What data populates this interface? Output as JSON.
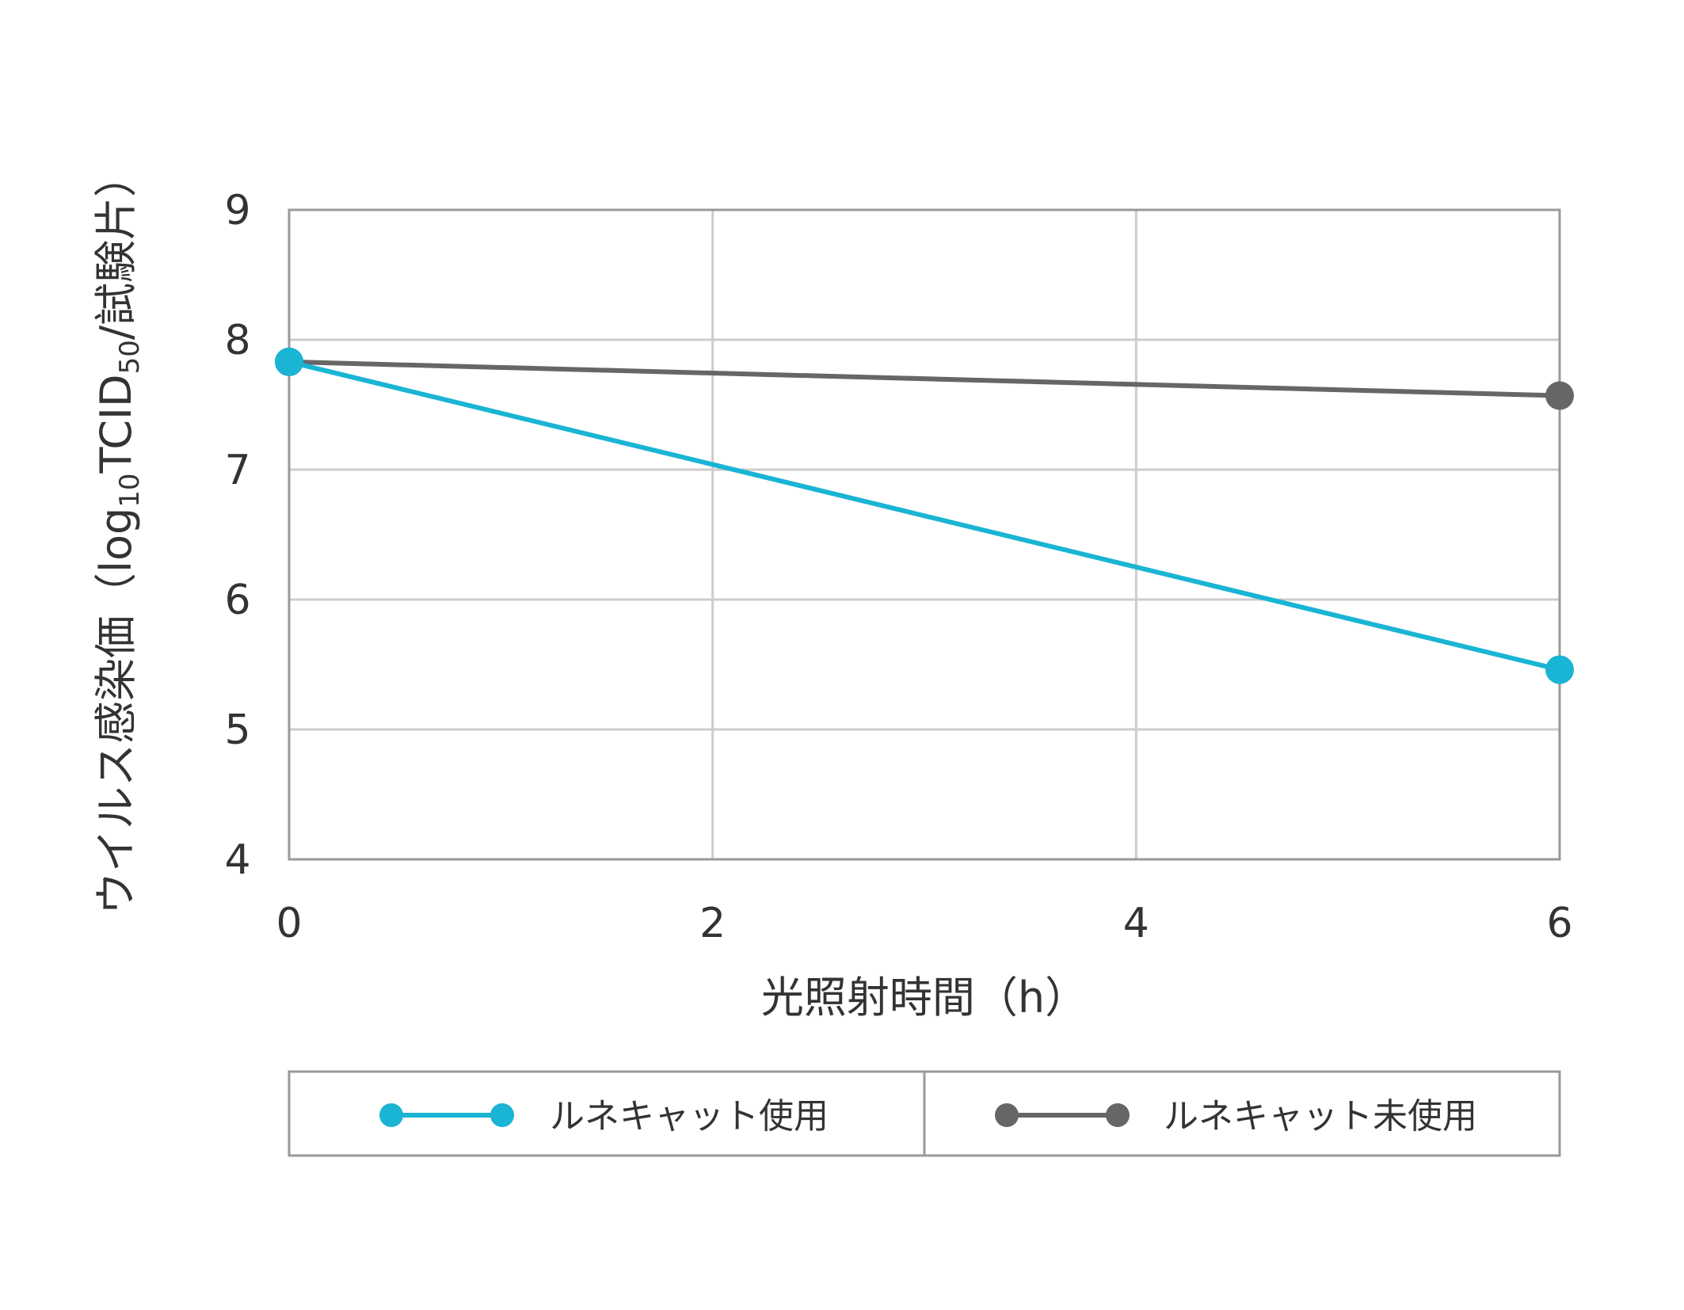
{
  "chart_data": {
    "type": "line",
    "title": "",
    "xlabel": "光照射時間（h）",
    "ylabel": {
      "part1": "ウイルス感染価（log",
      "sub1": "10",
      "part2": "TCID",
      "sub2": "50",
      "part3": "/試験片）"
    },
    "xlim": [
      0,
      6
    ],
    "ylim": [
      4,
      9
    ],
    "x_ticks": [
      0,
      2,
      4,
      6
    ],
    "y_ticks": [
      4,
      5,
      6,
      7,
      8,
      9
    ],
    "grid": true,
    "legend_position": "bottom",
    "series": [
      {
        "name": "ルネキャット使用",
        "color": "#1ab4d4",
        "x": [
          0,
          6
        ],
        "y": [
          7.83,
          5.46
        ]
      },
      {
        "name": "ルネキャット未使用",
        "color": "#666666",
        "x": [
          0,
          6
        ],
        "y": [
          7.83,
          7.57
        ]
      }
    ]
  },
  "style": {
    "grid_color": "#cccccc",
    "frame_color": "#999999",
    "text_color": "#333333"
  }
}
